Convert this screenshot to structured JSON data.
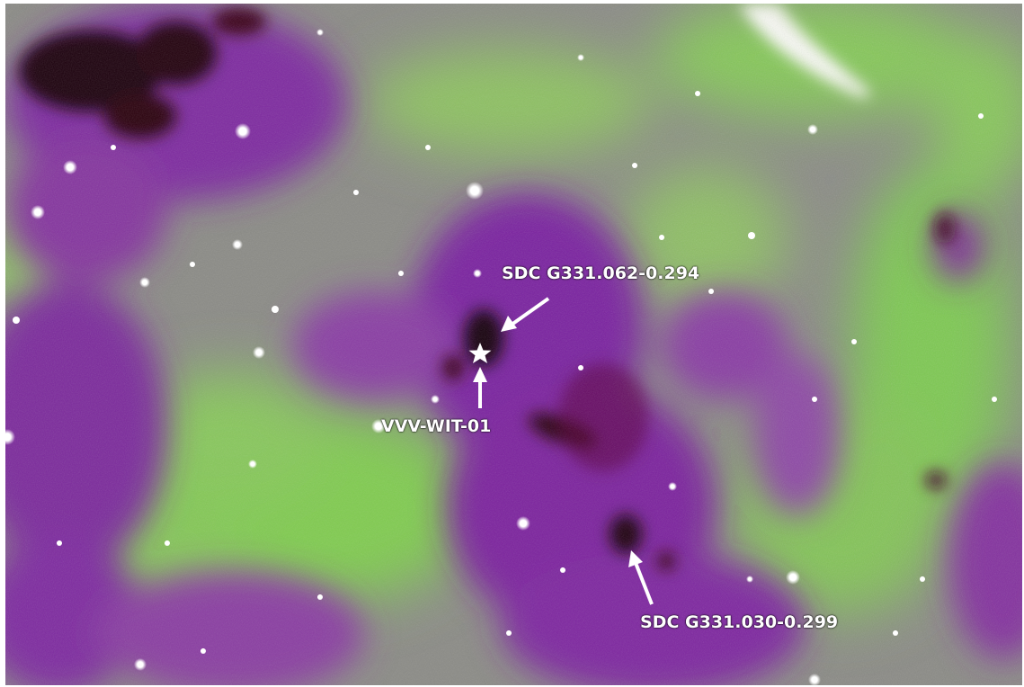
{
  "image": {
    "description_colors": {
      "background_gray": "#8a8a8a",
      "emission_green": "#7ed34a",
      "extinction_purple": "#7a1c9a",
      "core_dark": "#2a0010",
      "star_white": "#ffffff"
    }
  },
  "annotations": {
    "cloud_north": "SDC G331.062-0.294",
    "star_source": "VVV-WIT-01",
    "cloud_south": "SDC G331.030-0.299"
  }
}
